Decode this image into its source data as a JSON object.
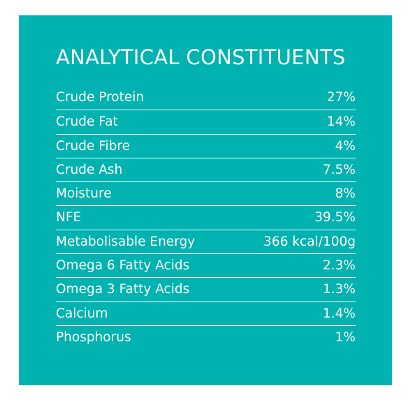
{
  "panel": {
    "background_color": "#00b3b0",
    "text_color": "#ffffff"
  },
  "title": "ANALYTICAL CONSTITUENTS",
  "rows": [
    {
      "name": "Crude Protein",
      "value": "27%"
    },
    {
      "name": "Crude Fat",
      "value": "14%"
    },
    {
      "name": "Crude Fibre",
      "value": "4%"
    },
    {
      "name": "Crude Ash",
      "value": "7.5%"
    },
    {
      "name": "Moisture",
      "value": "8%"
    },
    {
      "name": "NFE",
      "value": "39.5%"
    },
    {
      "name": "Metabolisable Energy",
      "value": "366 kcal/100g"
    },
    {
      "name": "Omega 6 Fatty Acids",
      "value": "2.3%"
    },
    {
      "name": "Omega 3 Fatty Acids",
      "value": "1.3%"
    },
    {
      "name": "Calcium",
      "value": "1.4%"
    },
    {
      "name": "Phosphorus",
      "value": "1%"
    }
  ]
}
